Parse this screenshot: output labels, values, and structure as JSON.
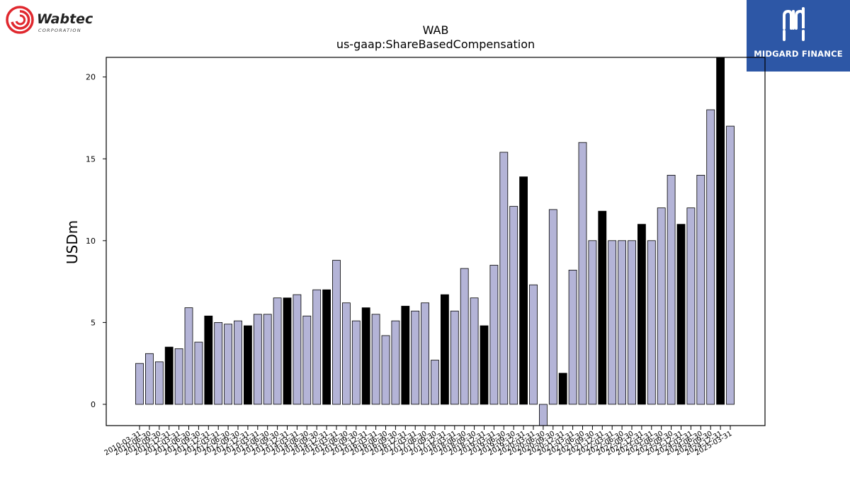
{
  "logos": {
    "company_name": "Wabtec",
    "company_sub": "CORPORATION",
    "publisher": "MIDGARD FINANCE"
  },
  "colors": {
    "bar_default": "#b4b4d7",
    "bar_highlight": "#000000",
    "midgard_blue": "#2d57a6",
    "wabtec_red": "#e0282e"
  },
  "chart_data": {
    "type": "bar",
    "title": "WAB",
    "subtitle": "us-gaap:ShareBasedCompensation",
    "ylabel": "USDm",
    "xlabel": "",
    "ylim": [
      -1.3,
      21.2
    ],
    "yticks": [
      0,
      5,
      10,
      15,
      20
    ],
    "grid": false,
    "note": "",
    "categories": [
      "2010-03-31",
      "2010-06-30",
      "2010-09-30",
      "2010-12-31",
      "2011-03-31",
      "2011-06-30",
      "2011-09-30",
      "2011-12-31",
      "2012-03-31",
      "2012-06-30",
      "2012-09-30",
      "2012-12-31",
      "2013-03-31",
      "2013-06-30",
      "2013-09-30",
      "2013-12-31",
      "2014-03-31",
      "2014-06-30",
      "2014-09-30",
      "2014-12-31",
      "2015-03-31",
      "2015-06-30",
      "2015-09-30",
      "2015-12-31",
      "2016-03-31",
      "2016-06-30",
      "2016-09-30",
      "2016-12-31",
      "2017-03-31",
      "2017-06-30",
      "2017-09-30",
      "2017-12-31",
      "2018-03-31",
      "2018-06-30",
      "2018-09-30",
      "2018-12-31",
      "2019-03-31",
      "2019-06-30",
      "2019-09-30",
      "2019-12-31",
      "2020-03-31",
      "2020-06-30",
      "2020-09-30",
      "2020-12-31",
      "2021-03-31",
      "2021-06-30",
      "2021-09-30",
      "2021-12-31",
      "2022-03-31",
      "2022-06-30",
      "2022-09-30",
      "2022-12-31",
      "2023-03-31",
      "2023-06-30",
      "2023-09-30",
      "2023-12-31",
      "2024-03-31",
      "2024-06-30",
      "2024-09-30",
      "2024-12-31",
      "2025-03-31"
    ],
    "xtick_labels": [
      "2010-03-31",
      "2010-06-30",
      "2010-09-30",
      "2010-12-31",
      "2011-03-31",
      "2011-06-30",
      "2011-09-30",
      "2011-12-31",
      "2012-03-31",
      "2012-06-30",
      "2012-09-30",
      "2012-12-31",
      "2013-03-31",
      "2013-06-30",
      "2013-09-30",
      "2013-12-31",
      "2014-03-31",
      "2014-06-30",
      "2014-09-30",
      "2014-12-31",
      "2015-03-31",
      "2015-06-30",
      "2015-09-30",
      "2015-12-31",
      "2016-03-31",
      "2016-06-30",
      "2016-09-30",
      "2016-12-31",
      "2017-03-31",
      "2017-06-30",
      "2017-09-30",
      "2017-12-31",
      "2018-03-31",
      "2018-06-30",
      "2018-09-30",
      "2018-12-31",
      "2019-03-31",
      "2019-06-30",
      "2019-09-30",
      "2019-12-31",
      "2020-03-31",
      "2020-06-30",
      "2020-09-30",
      "2020-12-31",
      "2021-03-31",
      "2021-06-30",
      "2021-09-30",
      "2021-12-31",
      "2022-03-31",
      "2022-06-30",
      "2022-09-30",
      "2022-12-31",
      "2023-03-31",
      "2023-06-30",
      "2023-09-30",
      "2023-12-31",
      "2024-03-31",
      "2024-06-30",
      "2024-09-30",
      "2024-12-31",
      "2025-03-31"
    ],
    "values": [
      2.5,
      3.1,
      2.6,
      3.5,
      3.4,
      5.9,
      3.8,
      5.4,
      5.0,
      4.9,
      5.1,
      4.8,
      5.5,
      5.5,
      6.5,
      6.5,
      6.7,
      5.4,
      7.0,
      7.0,
      8.8,
      6.2,
      5.1,
      5.9,
      5.5,
      4.2,
      5.1,
      6.0,
      5.7,
      6.2,
      2.7,
      6.7,
      5.7,
      8.3,
      6.5,
      4.8,
      8.5,
      15.4,
      12.1,
      13.9,
      7.3,
      -1.5,
      11.9,
      1.9,
      8.2,
      16.0,
      10.0,
      11.8,
      10.0,
      10.0,
      10.0,
      11.0,
      10.0,
      12.0,
      14.0,
      11.0,
      12.0,
      14.0,
      18.0,
      21.5,
      17.0
    ],
    "highlight": [
      false,
      false,
      false,
      true,
      false,
      false,
      false,
      true,
      false,
      false,
      false,
      true,
      false,
      false,
      false,
      true,
      false,
      false,
      false,
      true,
      false,
      false,
      false,
      true,
      false,
      false,
      false,
      true,
      false,
      false,
      false,
      true,
      false,
      false,
      false,
      true,
      false,
      false,
      false,
      true,
      false,
      false,
      false,
      true,
      false,
      false,
      false,
      true,
      false,
      false,
      false,
      true,
      false,
      false,
      false,
      true,
      false,
      false,
      false,
      true,
      false
    ]
  }
}
